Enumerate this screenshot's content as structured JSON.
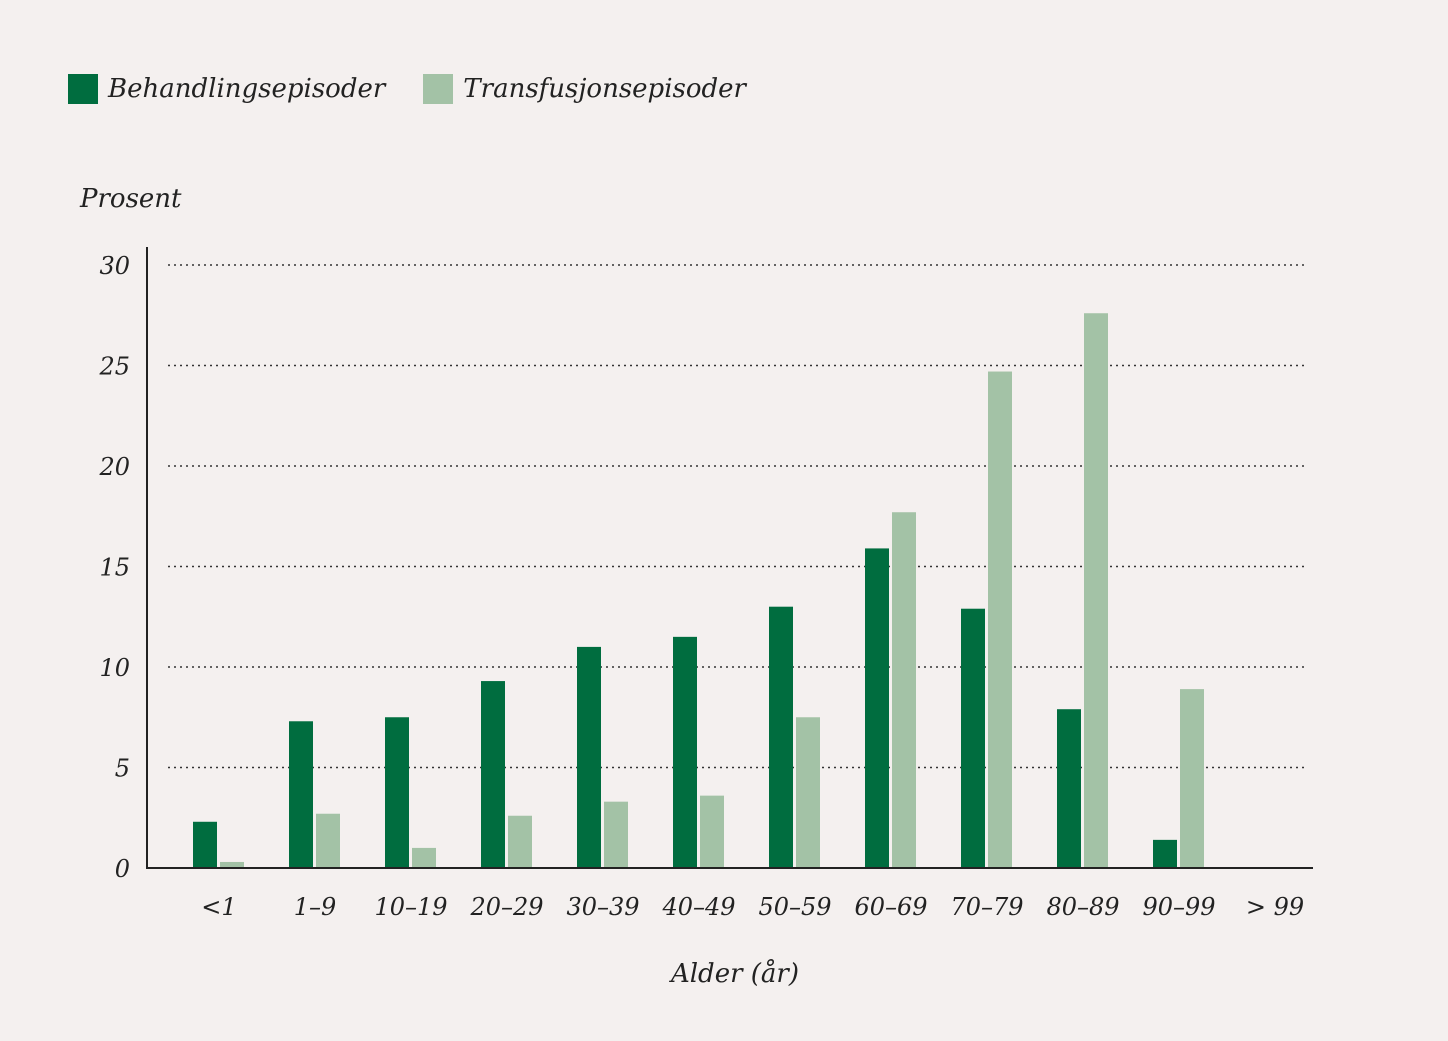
{
  "chart_data": {
    "type": "bar",
    "title": "",
    "xlabel": "Alder (år)",
    "ylabel": "Prosent",
    "ylim": [
      0,
      30
    ],
    "yticks": [
      0,
      5,
      10,
      15,
      20,
      25,
      30
    ],
    "grid": true,
    "legend_position": "top-left",
    "categories": [
      "<1",
      "1–9",
      "10–19",
      "20–29",
      "30–39",
      "40–49",
      "50–59",
      "60–69",
      "70–79",
      "80–89",
      "90–99",
      "> 99"
    ],
    "series": [
      {
        "name": "Behandlingsepisoder",
        "color": "#006d3f",
        "values": [
          2.3,
          7.3,
          7.5,
          9.3,
          11.0,
          11.5,
          13.0,
          15.9,
          12.9,
          7.9,
          1.4,
          0
        ]
      },
      {
        "name": "Transfusjonsepisoder",
        "color": "#a3c2a6",
        "values": [
          0.3,
          2.7,
          1.0,
          2.6,
          3.3,
          3.6,
          7.5,
          17.7,
          24.7,
          27.6,
          8.9,
          0
        ]
      }
    ]
  }
}
